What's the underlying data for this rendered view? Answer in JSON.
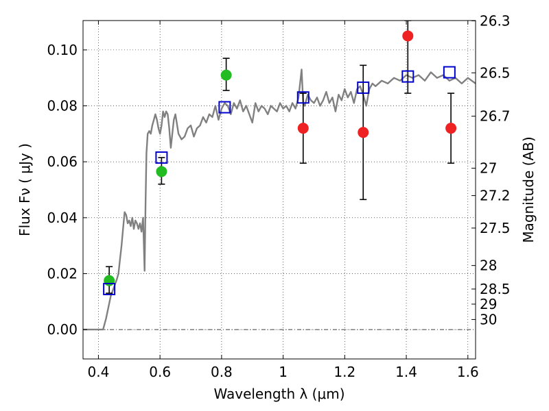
{
  "chart_data": {
    "type": "scatter",
    "xlabel": "Wavelength  λ (μm)",
    "ylabel": "Flux  Fν  ( μJy )",
    "y2label": "Magnitude (AB)",
    "xlim": [
      0.35,
      1.625
    ],
    "ylim": [
      -0.0105,
      0.1105
    ],
    "grid": true,
    "x_ticks": [
      {
        "value": 0.4,
        "label": "0.4"
      },
      {
        "value": 0.6,
        "label": "0.6"
      },
      {
        "value": 0.8,
        "label": "0.8"
      },
      {
        "value": 1.0,
        "label": "1"
      },
      {
        "value": 1.2,
        "label": "1.2"
      },
      {
        "value": 1.4,
        "label": "1.4"
      },
      {
        "value": 1.6,
        "label": "1.6"
      }
    ],
    "y_ticks": [
      {
        "value": 0.0,
        "label": "0.00"
      },
      {
        "value": 0.02,
        "label": "0.02"
      },
      {
        "value": 0.04,
        "label": "0.04"
      },
      {
        "value": 0.06,
        "label": "0.06"
      },
      {
        "value": 0.08,
        "label": "0.08"
      },
      {
        "value": 0.1,
        "label": "0.10"
      }
    ],
    "mag_ticks": [
      {
        "flux": 0.1104,
        "label": "26.3"
      },
      {
        "flux": 0.0918,
        "label": "26.5"
      },
      {
        "flux": 0.0763,
        "label": "26.7"
      },
      {
        "flux": 0.0577,
        "label": "27"
      },
      {
        "flux": 0.0479,
        "label": "27.2"
      },
      {
        "flux": 0.0363,
        "label": "27.5"
      },
      {
        "flux": 0.0229,
        "label": "28"
      },
      {
        "flux": 0.0145,
        "label": "28.5"
      },
      {
        "flux": 0.0091,
        "label": "29"
      },
      {
        "flux": 0.0036,
        "label": "30"
      }
    ],
    "series": [
      {
        "marker": "line",
        "color": "#808080",
        "x": [
          0.35,
          0.415,
          0.425,
          0.44,
          0.45,
          0.46,
          0.465,
          0.47,
          0.475,
          0.48,
          0.485,
          0.49,
          0.495,
          0.5,
          0.505,
          0.51,
          0.515,
          0.52,
          0.525,
          0.53,
          0.535,
          0.54,
          0.545,
          0.55,
          0.553,
          0.556,
          0.56,
          0.565,
          0.57,
          0.575,
          0.58,
          0.585,
          0.59,
          0.595,
          0.6,
          0.605,
          0.61,
          0.615,
          0.62,
          0.625,
          0.63,
          0.635,
          0.64,
          0.645,
          0.65,
          0.66,
          0.67,
          0.68,
          0.69,
          0.7,
          0.71,
          0.72,
          0.73,
          0.74,
          0.75,
          0.76,
          0.77,
          0.78,
          0.79,
          0.8,
          0.81,
          0.82,
          0.83,
          0.84,
          0.85,
          0.86,
          0.87,
          0.88,
          0.89,
          0.9,
          0.91,
          0.92,
          0.93,
          0.94,
          0.95,
          0.96,
          0.97,
          0.98,
          0.99,
          1.0,
          1.01,
          1.02,
          1.03,
          1.04,
          1.05,
          1.06,
          1.065,
          1.07,
          1.08,
          1.09,
          1.1,
          1.11,
          1.12,
          1.13,
          1.14,
          1.15,
          1.16,
          1.17,
          1.18,
          1.19,
          1.2,
          1.21,
          1.22,
          1.23,
          1.24,
          1.25,
          1.26,
          1.27,
          1.28,
          1.29,
          1.3,
          1.32,
          1.34,
          1.36,
          1.38,
          1.4,
          1.42,
          1.44,
          1.46,
          1.48,
          1.5,
          1.52,
          1.54,
          1.56,
          1.58,
          1.6,
          1.625
        ],
        "y": [
          0.0,
          0.0,
          0.004,
          0.012,
          0.015,
          0.018,
          0.02,
          0.025,
          0.03,
          0.036,
          0.042,
          0.041,
          0.038,
          0.039,
          0.037,
          0.04,
          0.036,
          0.039,
          0.038,
          0.036,
          0.038,
          0.035,
          0.04,
          0.021,
          0.045,
          0.063,
          0.07,
          0.071,
          0.07,
          0.073,
          0.075,
          0.077,
          0.075,
          0.072,
          0.07,
          0.073,
          0.078,
          0.076,
          0.078,
          0.077,
          0.072,
          0.065,
          0.07,
          0.075,
          0.077,
          0.07,
          0.068,
          0.069,
          0.072,
          0.073,
          0.069,
          0.072,
          0.073,
          0.076,
          0.074,
          0.077,
          0.076,
          0.08,
          0.075,
          0.079,
          0.081,
          0.08,
          0.077,
          0.081,
          0.079,
          0.082,
          0.078,
          0.08,
          0.077,
          0.074,
          0.081,
          0.078,
          0.08,
          0.079,
          0.077,
          0.08,
          0.079,
          0.078,
          0.081,
          0.079,
          0.08,
          0.078,
          0.081,
          0.079,
          0.083,
          0.093,
          0.081,
          0.08,
          0.084,
          0.082,
          0.081,
          0.083,
          0.08,
          0.082,
          0.085,
          0.081,
          0.083,
          0.078,
          0.084,
          0.082,
          0.086,
          0.083,
          0.085,
          0.081,
          0.086,
          0.087,
          0.084,
          0.08,
          0.086,
          0.088,
          0.087,
          0.089,
          0.088,
          0.09,
          0.089,
          0.091,
          0.09,
          0.091,
          0.089,
          0.092,
          0.09,
          0.091,
          0.089,
          0.09,
          0.088,
          0.09,
          0.088
        ]
      },
      {
        "marker": "filled-circle",
        "color": "#22bb22",
        "x": [
          0.435,
          0.605,
          0.815
        ],
        "y": [
          0.0175,
          0.0565,
          0.091
        ],
        "yerr_low": [
          0.013,
          0.052,
          0.0855
        ],
        "yerr_high": [
          0.0225,
          0.0615,
          0.097
        ]
      },
      {
        "marker": "filled-circle",
        "color": "#ee2222",
        "x": [
          1.065,
          1.26,
          1.405,
          1.545
        ],
        "y": [
          0.072,
          0.0705,
          0.105,
          0.072
        ],
        "yerr_low": [
          0.0595,
          0.0465,
          0.0845,
          0.0595
        ],
        "yerr_high": [
          0.0845,
          0.0945,
          0.1105,
          0.0845
        ]
      },
      {
        "marker": "open-square",
        "color": "#0000cc",
        "x": [
          0.435,
          0.605,
          0.81,
          1.065,
          1.26,
          1.405,
          1.54
        ],
        "y": [
          0.0145,
          0.0615,
          0.0795,
          0.083,
          0.0865,
          0.0905,
          0.092
        ]
      }
    ]
  }
}
